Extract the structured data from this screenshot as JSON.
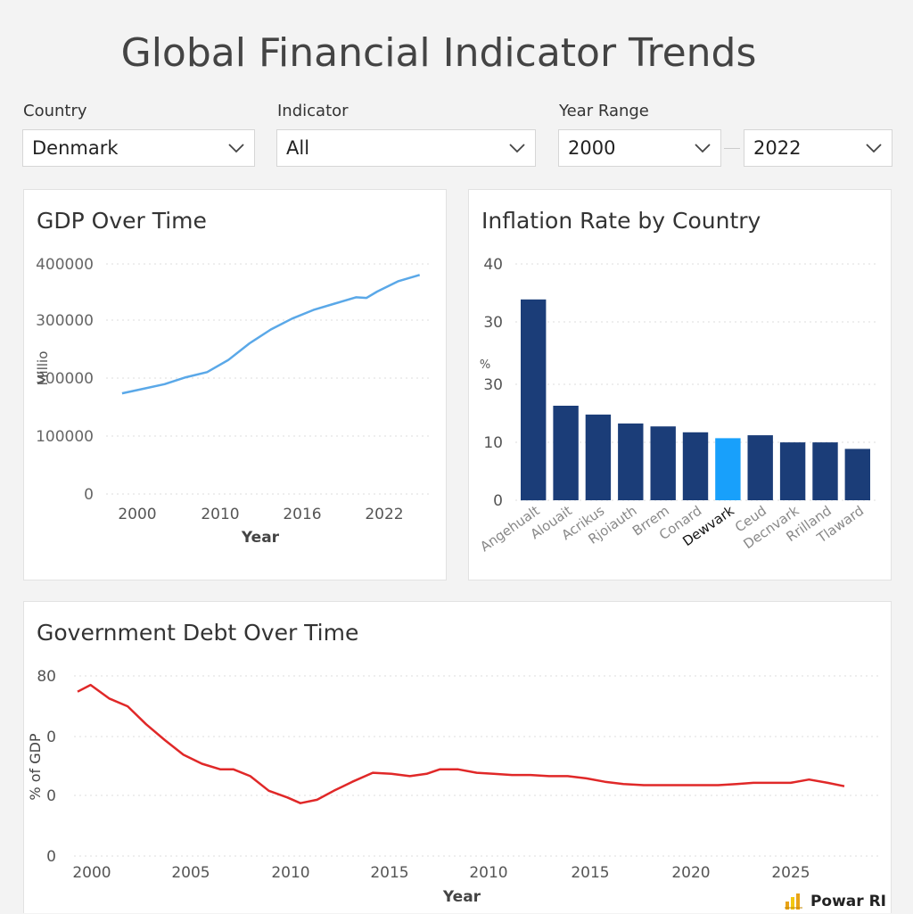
{
  "title": "Global Financial Indicator Trends",
  "filters": {
    "country": {
      "label": "Country",
      "value": "Denmark"
    },
    "indicator": {
      "label": "Indicator",
      "value": "All"
    },
    "year_range": {
      "label": "Year Range",
      "from": "2000",
      "to": "2022"
    }
  },
  "watermark": "Powar RI",
  "colors": {
    "gdp_line": "#5aa8e8",
    "bar": "#1b3d78",
    "bar_highlight": "#18a0fb",
    "debt_line": "#e02828",
    "grid": "#dcdcdc"
  },
  "chart_data": [
    {
      "type": "line",
      "title": "GDP Over Time",
      "xlabel": "Year",
      "ylabel": "Millio",
      "ylim": [
        0,
        400000
      ],
      "yticks": [
        "0",
        "100000",
        "300000",
        "300000",
        "400000"
      ],
      "xticks": [
        "2000",
        "2010",
        "2016",
        "2022"
      ],
      "grid": true,
      "series": [
        {
          "values": [
            {
              "x": 1998,
              "y": 175000
            },
            {
              "x": 2000,
              "y": 183000
            },
            {
              "x": 2002,
              "y": 191000
            },
            {
              "x": 2004,
              "y": 203000
            },
            {
              "x": 2006,
              "y": 212000
            },
            {
              "x": 2008,
              "y": 233000
            },
            {
              "x": 2010,
              "y": 262000
            },
            {
              "x": 2012,
              "y": 286000
            },
            {
              "x": 2014,
              "y": 305000
            },
            {
              "x": 2016,
              "y": 320000
            },
            {
              "x": 2018,
              "y": 331000
            },
            {
              "x": 2020,
              "y": 342000
            },
            {
              "x": 2021,
              "y": 341000
            },
            {
              "x": 2022,
              "y": 352000
            },
            {
              "x": 2024,
              "y": 370000
            },
            {
              "x": 2026,
              "y": 381000
            }
          ]
        }
      ]
    },
    {
      "type": "bar",
      "title": "Inflation Rate by Country",
      "ylabel": "%",
      "ylim": [
        0,
        40
      ],
      "yticks": [
        "0",
        "10",
        "30",
        "30",
        "40"
      ],
      "grid": true,
      "categories": [
        "Angehualt",
        "Alouait",
        "Acrikus",
        "Rjoiauth",
        "Brrem",
        "Conard",
        "Dewvark",
        "Ceud",
        "Decnvark",
        "Rrilland",
        "Tlaward"
      ],
      "values": [
        34,
        16,
        14.5,
        13,
        12.5,
        11.5,
        10.5,
        11,
        9.8,
        9.8,
        8.7
      ],
      "highlight": "Dewvark"
    },
    {
      "type": "line",
      "title": "Government Debt Over Time",
      "xlabel": "Year",
      "ylabel": "% of GDP",
      "ylim": [
        0,
        80
      ],
      "yticks": [
        "0",
        "0",
        "0",
        "80"
      ],
      "xticks": [
        "2000",
        "2005",
        "2010",
        "2015",
        "2010",
        "2015",
        "2020",
        "2025"
      ],
      "grid": true,
      "series": [
        {
          "values": [
            {
              "x": 1999.7,
              "y": 73
            },
            {
              "x": 2000.4,
              "y": 76
            },
            {
              "x": 2001.4,
              "y": 70
            },
            {
              "x": 2002.4,
              "y": 66.5
            },
            {
              "x": 2003.4,
              "y": 58.5
            },
            {
              "x": 2004.4,
              "y": 51.5
            },
            {
              "x": 2005.4,
              "y": 45
            },
            {
              "x": 2006.4,
              "y": 41
            },
            {
              "x": 2007.4,
              "y": 38.5
            },
            {
              "x": 2008.1,
              "y": 38.5
            },
            {
              "x": 2009.0,
              "y": 35.5
            },
            {
              "x": 2010.0,
              "y": 29
            },
            {
              "x": 2011.0,
              "y": 26
            },
            {
              "x": 2011.7,
              "y": 23.5
            },
            {
              "x": 2012.6,
              "y": 25
            },
            {
              "x": 2013.5,
              "y": 29
            },
            {
              "x": 2014.5,
              "y": 33
            },
            {
              "x": 2015.6,
              "y": 37
            },
            {
              "x": 2016.6,
              "y": 36.5
            },
            {
              "x": 2017.6,
              "y": 35.5
            },
            {
              "x": 2018.5,
              "y": 36.5
            },
            {
              "x": 2019.2,
              "y": 38.5
            },
            {
              "x": 2020.2,
              "y": 38.5
            },
            {
              "x": 2021.2,
              "y": 37
            },
            {
              "x": 2022.1,
              "y": 36.5
            },
            {
              "x": 2023.1,
              "y": 36
            },
            {
              "x": 2024.1,
              "y": 36
            },
            {
              "x": 2025.1,
              "y": 35.5
            },
            {
              "x": 2026.1,
              "y": 35.5
            },
            {
              "x": 2027.1,
              "y": 34.5
            },
            {
              "x": 2028.1,
              "y": 33
            },
            {
              "x": 2029.1,
              "y": 32
            },
            {
              "x": 2030.2,
              "y": 31.5
            },
            {
              "x": 2031.2,
              "y": 31.5
            },
            {
              "x": 2032.2,
              "y": 31.5
            },
            {
              "x": 2033.2,
              "y": 31.5
            },
            {
              "x": 2034.2,
              "y": 31.5
            },
            {
              "x": 2035.2,
              "y": 32
            },
            {
              "x": 2036.1,
              "y": 32.5
            },
            {
              "x": 2037.1,
              "y": 32.5
            },
            {
              "x": 2038.1,
              "y": 32.5
            },
            {
              "x": 2039.1,
              "y": 34
            },
            {
              "x": 2040.1,
              "y": 32.5
            },
            {
              "x": 2041.0,
              "y": 31
            }
          ]
        }
      ]
    }
  ]
}
